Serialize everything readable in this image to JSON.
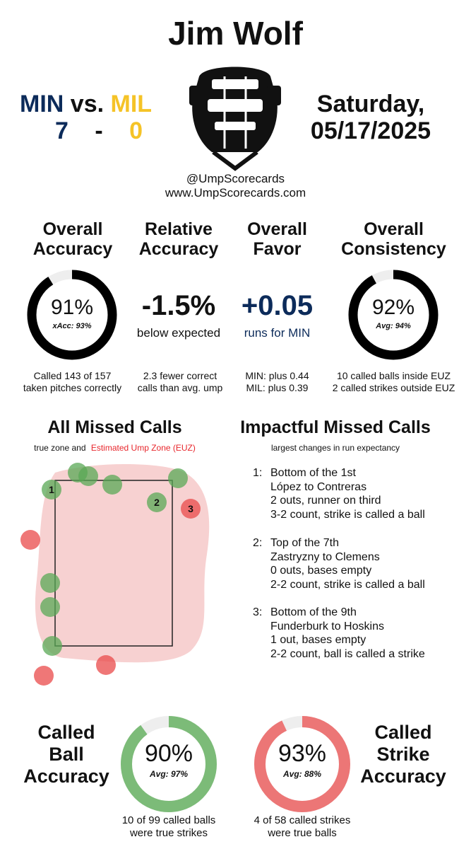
{
  "umpire": "Jim Wolf",
  "teams": {
    "away": "MIN",
    "vs": "vs.",
    "home": "MIL",
    "away_score": "7",
    "dash": "-",
    "home_score": "0",
    "away_color": "#0c2b5a",
    "home_color": "#f5c327"
  },
  "date": {
    "weekday": "Saturday,",
    "date": "05/17/2025"
  },
  "credits": {
    "handle": "@UmpScorecards",
    "site": "www.UmpScorecards.com"
  },
  "mask_icon": "umpire-mask-icon",
  "stats": {
    "accuracy": {
      "title1": "Overall",
      "title2": "Accuracy",
      "value": "91%",
      "sub": "xAcc: 93%",
      "fraction": 0.91,
      "note1": "Called 143 of 157",
      "note2": "taken pitches correctly"
    },
    "relative": {
      "title1": "Relative",
      "title2": "Accuracy",
      "value": "-1.5%",
      "sub": "below expected",
      "note1": "2.3 fewer correct",
      "note2": "calls than avg. ump"
    },
    "favor": {
      "title1": "Overall",
      "title2": "Favor",
      "value": "+0.05",
      "sub": "runs for MIN",
      "note1": "MIN: plus 0.44",
      "note2": "MIL: plus 0.39"
    },
    "consistency": {
      "title1": "Overall",
      "title2": "Consistency",
      "value": "92%",
      "sub": "Avg: 94%",
      "fraction": 0.92,
      "note1": "10 called balls inside EUZ",
      "note2": "2 called strikes outside EUZ"
    }
  },
  "missed_calls": {
    "title": "All Missed Calls",
    "subtitle_prefix": "true zone and",
    "subtitle_euz": "Estimated Ump Zone (EUZ)",
    "euz_color": "#e8262c",
    "labels": [
      "1",
      "2",
      "3"
    ]
  },
  "impactful": {
    "title": "Impactful Missed Calls",
    "subtitle": "largest changes in run expectancy",
    "items": [
      {
        "num": "1:",
        "inning": "Bottom of the 1st",
        "matchup": "López to Contreras",
        "situation": "2 outs, runner on third",
        "call": "3-2 count, strike is called a ball"
      },
      {
        "num": "2:",
        "inning": "Top of the 7th",
        "matchup": "Zastryzny to Clemens",
        "situation": "0 outs, bases empty",
        "call": "2-2 count, strike is called a ball"
      },
      {
        "num": "3:",
        "inning": "Bottom of the 9th",
        "matchup": "Funderburk to Hoskins",
        "situation": "1 out, bases empty",
        "call": "2-2 count, ball is called a strike"
      }
    ]
  },
  "ball_accuracy": {
    "title1": "Called",
    "title2": "Ball",
    "title3": "Accuracy",
    "value": "90%",
    "sub": "Avg: 97%",
    "fraction": 0.9,
    "note1": "10 of 99 called balls",
    "note2": "were true strikes",
    "color": "#7cbb78"
  },
  "strike_accuracy": {
    "title1": "Called",
    "title2": "Strike",
    "title3": "Accuracy",
    "value": "93%",
    "sub": "Avg: 88%",
    "fraction": 0.93,
    "note1": "4 of 58 called strikes",
    "note2": "were true balls",
    "color": "#ec7676"
  }
}
